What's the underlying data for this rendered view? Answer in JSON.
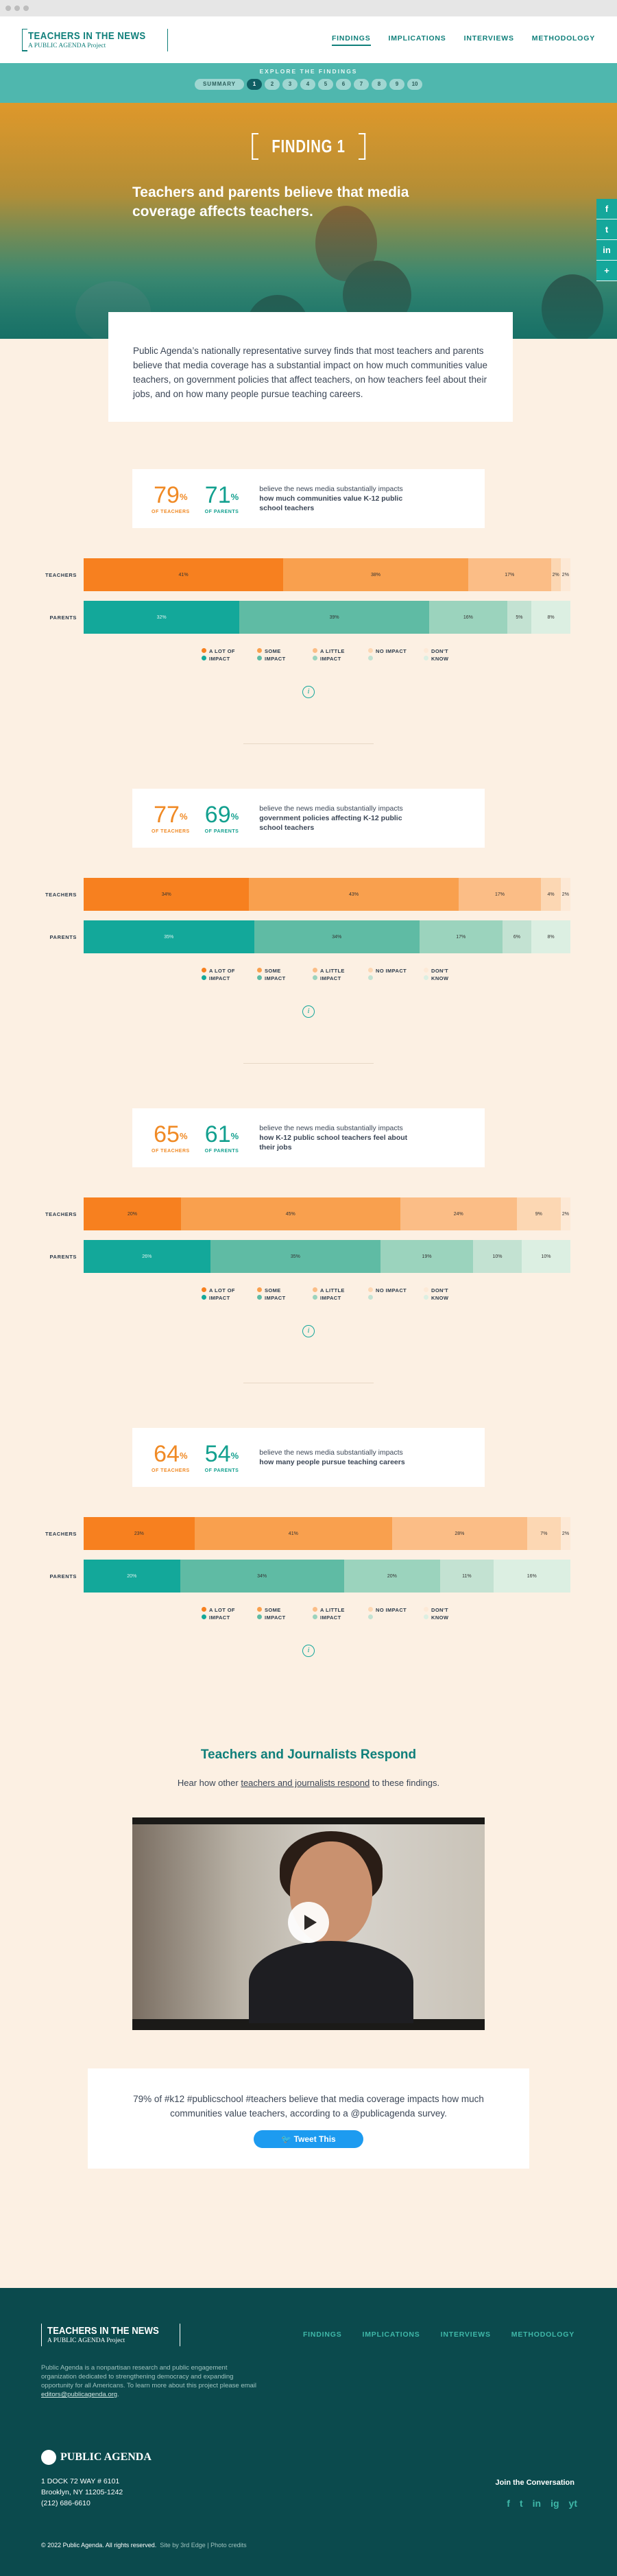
{
  "header": {
    "logo_title": "TEACHERS IN THE NEWS",
    "logo_subtitle": "A PUBLIC AGENDA Project",
    "nav": [
      "FINDINGS",
      "IMPLICATIONS",
      "INTERVIEWS",
      "METHODOLOGY"
    ]
  },
  "explore": {
    "label": "EXPLORE THE FINDINGS",
    "summary": "SUMMARY",
    "pages": [
      "1",
      "2",
      "3",
      "4",
      "5",
      "6",
      "7",
      "8",
      "9",
      "10"
    ]
  },
  "hero": {
    "finding_label": "FINDING 1",
    "headline": "Teachers and parents believe that media coverage affects teachers."
  },
  "social": [
    "f",
    "t",
    "in",
    "+"
  ],
  "intro": "Public Agenda’s nationally representative survey finds that most teachers and parents believe that media coverage has a substantial impact on how much communities value teachers, on government policies that affect teachers, on how teachers feel about their jobs, and on how many people pursue teaching careers.",
  "labels": {
    "teachers_row": "TEACHERS",
    "parents_row": "PARENTS",
    "of_teachers": "OF TEACHERS",
    "of_parents": "OF PARENTS",
    "pct": "%",
    "desc_lead": "believe the news media substantially impacts"
  },
  "legend": [
    {
      "label": "A LOT OF IMPACT",
      "colors": [
        "#f7801f",
        "#13a89a"
      ]
    },
    {
      "label": "SOME IMPACT",
      "colors": [
        "#f9a04e",
        "#5fbba4"
      ]
    },
    {
      "label": "A LITTLE IMPACT",
      "colors": [
        "#fbbd86",
        "#9bd3bd"
      ]
    },
    {
      "label": "NO IMPACT",
      "colors": [
        "#fcd7b3",
        "#c3e2d2"
      ]
    },
    {
      "label": "DON'T KNOW",
      "colors": [
        "#fde9d6",
        "#dcefe2"
      ]
    }
  ],
  "colors": {
    "teachers": [
      "#f7801f",
      "#f9a04e",
      "#fbbd86",
      "#fcd7b3",
      "#fde9d6"
    ],
    "parents": [
      "#13a89a",
      "#5fbba4",
      "#9bd3bd",
      "#c3e2d2",
      "#dcefe2"
    ]
  },
  "findings": [
    {
      "teachers_pct": "79",
      "parents_pct": "71",
      "topic": "how much communities value K-12 public school teachers",
      "teachers": [
        41,
        38,
        17,
        2,
        2
      ],
      "parents": [
        32,
        39,
        16,
        5,
        8
      ],
      "teachers_labels": [
        "41%",
        "38%",
        "17%",
        "2%",
        "2%"
      ],
      "parents_labels": [
        "32%",
        "39%",
        "16%",
        "5%",
        "8%"
      ]
    },
    {
      "teachers_pct": "77",
      "parents_pct": "69",
      "topic": "government policies affecting K-12 public school teachers",
      "teachers": [
        34,
        43,
        17,
        4,
        2
      ],
      "parents": [
        35,
        34,
        17,
        6,
        8
      ],
      "teachers_labels": [
        "34%",
        "43%",
        "17%",
        "4%",
        "2%"
      ],
      "parents_labels": [
        "35%",
        "34%",
        "17%",
        "6%",
        "8%"
      ]
    },
    {
      "teachers_pct": "65",
      "parents_pct": "61",
      "topic": "how K-12 public school teachers feel about their jobs",
      "teachers": [
        20,
        45,
        24,
        9,
        2
      ],
      "parents": [
        26,
        35,
        19,
        10,
        10
      ],
      "teachers_labels": [
        "20%",
        "45%",
        "24%",
        "9%",
        "2%"
      ],
      "parents_labels": [
        "26%",
        "35%",
        "19%",
        "10%",
        "10%"
      ]
    },
    {
      "teachers_pct": "64",
      "parents_pct": "54",
      "topic": "how many people pursue teaching careers",
      "teachers": [
        23,
        41,
        28,
        7,
        2
      ],
      "parents": [
        20,
        34,
        20,
        11,
        16
      ],
      "teachers_labels": [
        "23%",
        "41%",
        "28%",
        "7%",
        "2%"
      ],
      "parents_labels": [
        "20%",
        "34%",
        "20%",
        "11%",
        "16%"
      ]
    }
  ],
  "respond": {
    "title": "Teachers and Journalists Respond",
    "text_before": "Hear how other ",
    "link": "teachers and journalists respond",
    "text_after": " to these findings."
  },
  "tweet": {
    "text": "79% of #k12 #publicschool #teachers believe that media coverage impacts how much communities value teachers, according to a @publicagenda survey.",
    "button": "Tweet This"
  },
  "footer": {
    "logo_title": "TEACHERS IN THE NEWS",
    "logo_subtitle": "A PUBLIC AGENDA Project",
    "nav": [
      "FINDINGS",
      "IMPLICATIONS",
      "INTERVIEWS",
      "METHODOLOGY"
    ],
    "desc": "Public Agenda is a nonpartisan research and public engagement organization dedicated to strengthening democracy and expanding opportunity for all Americans. To learn more about this project please email ",
    "email": "editors@publicagenda.org",
    "brand": "PUBLIC AGENDA",
    "address": [
      "1 DOCK 72 WAY # 6101",
      "Brooklyn, NY 11205-1242",
      "(212) 686-6610"
    ],
    "join": "Join the Conversation",
    "icons": [
      "f",
      "t",
      "in",
      "ig",
      "yt"
    ],
    "copyright": "© 2022 Public Agenda. All rights reserved.",
    "credits": "Site by 3rd Edge  |  Photo credits"
  }
}
